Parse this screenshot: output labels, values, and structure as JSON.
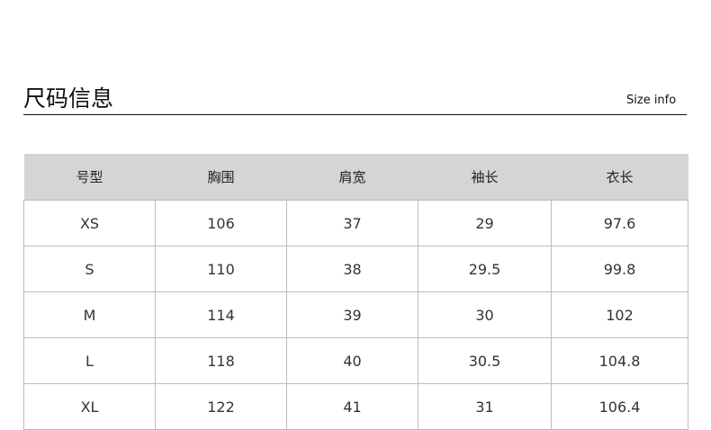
{
  "header": {
    "title": "尺码信息",
    "subtitle": "Size info"
  },
  "table": {
    "columns": [
      "号型",
      "胸围",
      "肩宽",
      "袖长",
      "衣长"
    ],
    "rows": [
      [
        "XS",
        "106",
        "37",
        "29",
        "97.6"
      ],
      [
        "S",
        "110",
        "38",
        "29.5",
        "99.8"
      ],
      [
        "M",
        "114",
        "39",
        "30",
        "102"
      ],
      [
        "L",
        "118",
        "40",
        "30.5",
        "104.8"
      ],
      [
        "XL",
        "122",
        "41",
        "31",
        "106.4"
      ]
    ]
  },
  "colors": {
    "header_bg": "#d5d5d5",
    "border": "#bdbdbd"
  }
}
